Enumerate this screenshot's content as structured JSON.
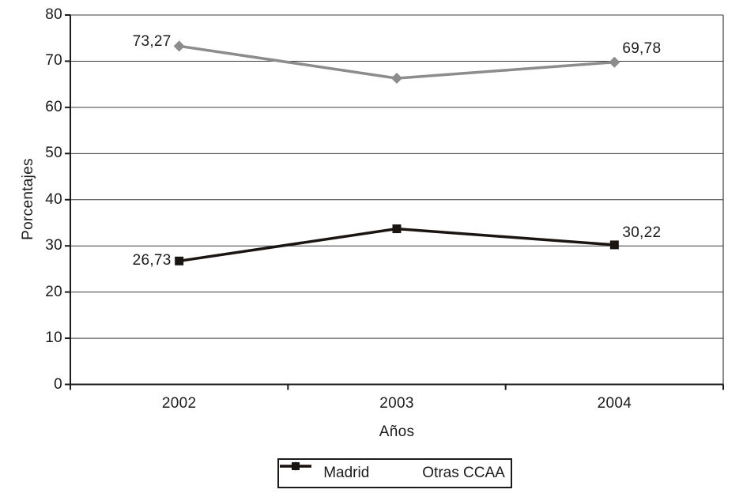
{
  "chart_data": {
    "type": "line",
    "title": "",
    "xlabel": "Años",
    "ylabel": "Porcentajes",
    "categories": [
      "2002",
      "2003",
      "2004"
    ],
    "yticks": [
      "80",
      "70",
      "60",
      "50",
      "40",
      "30",
      "20",
      "10",
      "0"
    ],
    "ylim": [
      0,
      80
    ],
    "grid": "horizontal-only",
    "legend_position": "bottom",
    "plot_border": true,
    "axis_color": "#1b1b1b",
    "background_color": "#ffffff",
    "series": [
      {
        "name": "Madrid",
        "color": "#8c8c8c",
        "marker": "diamond",
        "values": [
          73.27,
          66.3,
          69.78
        ],
        "labels": [
          {
            "text": "73,27",
            "point": 0,
            "side": "left",
            "dy": -5
          },
          {
            "text": "69,78",
            "point": 2,
            "side": "right",
            "dy": -17
          }
        ]
      },
      {
        "name": "Otras CCAA",
        "color": "#1b1512",
        "marker": "square",
        "values": [
          26.73,
          33.7,
          30.22
        ],
        "labels": [
          {
            "text": "26,73",
            "point": 0,
            "side": "left",
            "dy": 0
          },
          {
            "text": "30,22",
            "point": 2,
            "side": "right",
            "dy": -15
          }
        ]
      }
    ]
  }
}
